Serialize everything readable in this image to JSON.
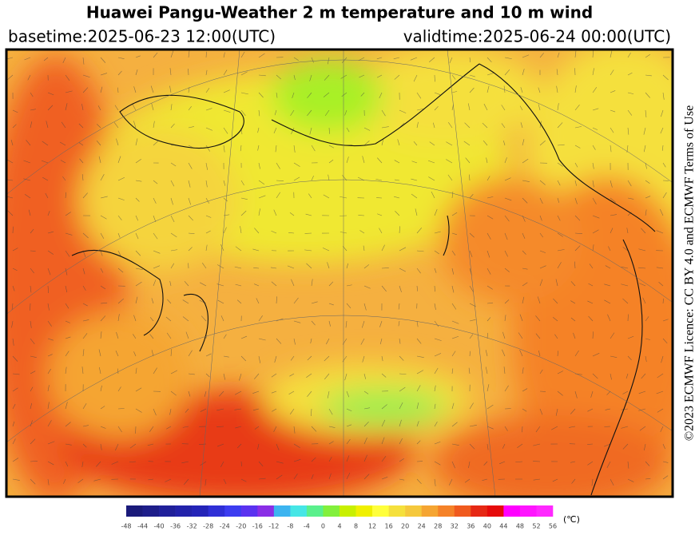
{
  "header": {
    "title": "Huawei Pangu-Weather  2 m temperature and 10 m wind",
    "basetime": "basetime:2025-06-23 12:00(UTC)",
    "validtime": "validtime:2025-06-24 00:00(UTC)"
  },
  "credit": "©2023 ECMWF Licence: CC BY 4.0 and ECMWF Terms of Use",
  "colorbar": {
    "ticks": [
      -48,
      -44,
      -40,
      -36,
      -32,
      -28,
      -24,
      -20,
      -16,
      -12,
      -8,
      -4,
      0,
      4,
      8,
      12,
      16,
      20,
      24,
      28,
      32,
      36,
      40,
      44,
      48,
      52,
      56
    ],
    "colors": [
      "#1a1a7a",
      "#1e1e8a",
      "#20209a",
      "#2222aa",
      "#2424b8",
      "#2f2fd6",
      "#3c3cf0",
      "#5a32f0",
      "#8a2ee6",
      "#3cb4f0",
      "#46e6e6",
      "#5af08c",
      "#82f03c",
      "#c8f000",
      "#f0f000",
      "#ffff3c",
      "#f5e03c",
      "#f5c83c",
      "#f5a532",
      "#f58228",
      "#f05a1e",
      "#e62814",
      "#e60a0a",
      "#ff00ff",
      "#ff14ff",
      "#ff28ff",
      "#ff3cff"
    ],
    "unit": "(℃)"
  }
}
